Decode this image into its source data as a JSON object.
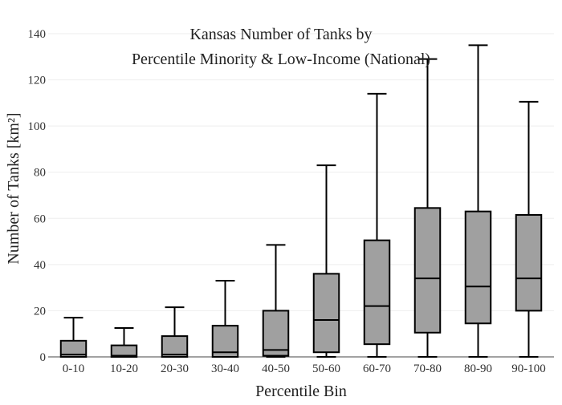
{
  "chart_data": {
    "type": "box",
    "title_lines": [
      "Kansas Number of Tanks by",
      "Percentile Minority & Low-Income (National)"
    ],
    "xlabel": "Percentile Bin",
    "ylabel": "Number of Tanks  [km²]",
    "ylim": [
      0,
      140
    ],
    "yticks": [
      0,
      20,
      40,
      60,
      80,
      100,
      120,
      140
    ],
    "grid": true,
    "categories": [
      "0-10",
      "10-20",
      "20-30",
      "30-40",
      "40-50",
      "50-60",
      "60-70",
      "70-80",
      "80-90",
      "90-100"
    ],
    "boxes": [
      {
        "min": 0,
        "q1": 0,
        "median": 1,
        "q3": 7,
        "max": 17
      },
      {
        "min": 0,
        "q1": 0,
        "median": 0.5,
        "q3": 5,
        "max": 12.5
      },
      {
        "min": 0,
        "q1": 0,
        "median": 1,
        "q3": 9,
        "max": 21.5
      },
      {
        "min": 0,
        "q1": 0,
        "median": 2,
        "q3": 13.5,
        "max": 33
      },
      {
        "min": 0,
        "q1": 0.5,
        "median": 3,
        "q3": 20,
        "max": 48.5
      },
      {
        "min": 0,
        "q1": 2,
        "median": 16,
        "q3": 36,
        "max": 83
      },
      {
        "min": 0,
        "q1": 5.5,
        "median": 22,
        "q3": 50.5,
        "max": 114
      },
      {
        "min": 0,
        "q1": 10.5,
        "median": 34,
        "q3": 64.5,
        "max": 129
      },
      {
        "min": 0,
        "q1": 14.5,
        "median": 30.5,
        "q3": 63,
        "max": 135
      },
      {
        "min": 0,
        "q1": 20,
        "median": 34,
        "q3": 61.5,
        "max": 110.5
      }
    ],
    "colors": {
      "box_fill": "#a0a0a0",
      "stroke": "#000000",
      "grid": "#eeeeee"
    }
  }
}
